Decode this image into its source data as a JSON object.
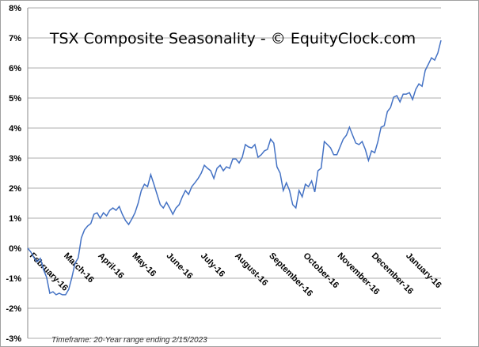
{
  "chart_data": {
    "type": "line",
    "title": "TSX Composite Seasonality - © EquityClock.com",
    "footnote": "Timeframe: 20-Year range ending 2/15/2023",
    "xlabel": "",
    "ylabel": "",
    "ylim": [
      -3,
      8
    ],
    "y_ticks": [
      "-3%",
      "-2%",
      "-1%",
      "0%",
      "1%",
      "2%",
      "3%",
      "4%",
      "5%",
      "6%",
      "7%",
      "8%"
    ],
    "x_tick_labels": [
      "February-16",
      "March-16",
      "April-16",
      "May-16",
      "June-16",
      "July-16",
      "August-16",
      "September-16",
      "October-16",
      "November-16",
      "December-16",
      "January-16"
    ],
    "grid": true,
    "line_color": "#4472C4",
    "series": [
      {
        "name": "TSX Composite Seasonality",
        "values": [
          0,
          -0.13,
          -0.32,
          -0.45,
          -0.34,
          -0.71,
          -0.97,
          -1.5,
          -1.45,
          -1.55,
          -1.5,
          -1.55,
          -1.55,
          -1.37,
          -0.97,
          -0.5,
          -0.32,
          0.34,
          0.61,
          0.74,
          0.82,
          1.13,
          1.18,
          1.0,
          1.18,
          1.08,
          1.26,
          1.34,
          1.26,
          1.39,
          1.13,
          0.92,
          0.79,
          0.97,
          1.18,
          1.5,
          1.92,
          2.13,
          2.05,
          2.45,
          2.13,
          1.79,
          1.45,
          1.34,
          1.53,
          1.34,
          1.13,
          1.34,
          1.45,
          1.71,
          1.92,
          1.79,
          2.05,
          2.18,
          2.32,
          2.5,
          2.76,
          2.66,
          2.58,
          2.32,
          2.66,
          2.76,
          2.58,
          2.71,
          2.66,
          2.97,
          2.97,
          2.84,
          3.03,
          3.45,
          3.37,
          3.34,
          3.45,
          3.03,
          3.11,
          3.24,
          3.29,
          3.63,
          3.5,
          2.71,
          2.5,
          1.92,
          2.18,
          1.92,
          1.45,
          1.34,
          1.92,
          1.71,
          2.13,
          2.05,
          2.24,
          1.87,
          2.58,
          2.66,
          3.55,
          3.45,
          3.34,
          3.11,
          3.11,
          3.37,
          3.63,
          3.76,
          4.03,
          3.76,
          3.5,
          3.45,
          3.55,
          3.29,
          2.92,
          3.24,
          3.18,
          3.55,
          4.03,
          4.08,
          4.55,
          4.68,
          5.03,
          5.08,
          4.87,
          5.13,
          5.13,
          5.18,
          4.95,
          5.29,
          5.47,
          5.39,
          5.92,
          6.13,
          6.34,
          6.26,
          6.5,
          6.92
        ]
      }
    ]
  }
}
